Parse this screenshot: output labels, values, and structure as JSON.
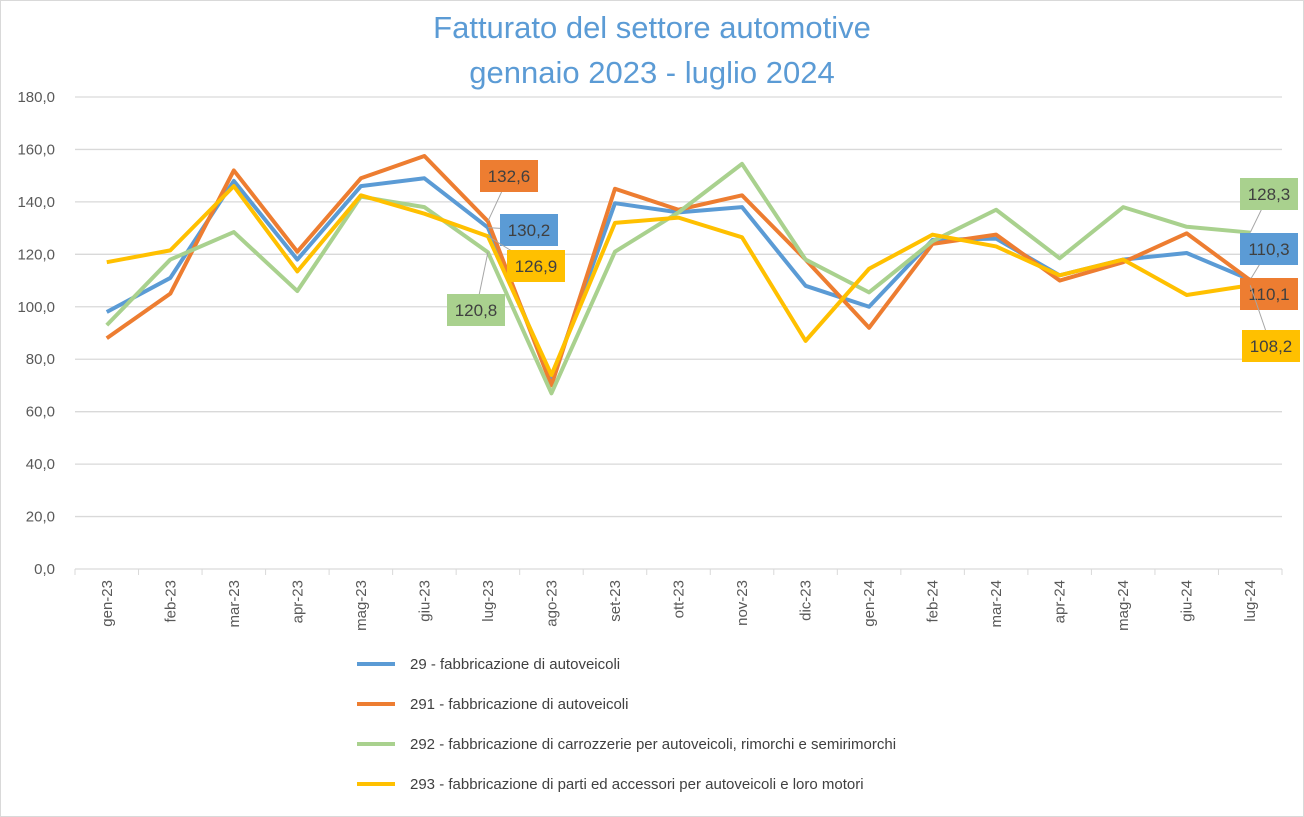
{
  "chart_data": {
    "type": "line",
    "title": [
      "Fatturato del settore automotive",
      "gennaio 2023 - luglio 2024"
    ],
    "xlabel": "",
    "ylabel": "",
    "ylim": [
      0,
      180
    ],
    "ytick_step": 20,
    "ytick_labels": [
      "0,0",
      "20,0",
      "40,0",
      "60,0",
      "80,0",
      "100,0",
      "120,0",
      "140,0",
      "160,0",
      "180,0"
    ],
    "grid": true,
    "legend_position": "bottom",
    "categories": [
      "gen-23",
      "feb-23",
      "mar-23",
      "apr-23",
      "mag-23",
      "giu-23",
      "lug-23",
      "ago-23",
      "set-23",
      "ott-23",
      "nov-23",
      "dic-23",
      "gen-24",
      "feb-24",
      "mar-24",
      "apr-24",
      "mag-24",
      "giu-24",
      "lug-24"
    ],
    "series": [
      {
        "name": "29 - fabbricazione di autoveicoli",
        "color": "#5b9bd5",
        "values": [
          98,
          111,
          148,
          118,
          146,
          149,
          130.2,
          72,
          139.5,
          136,
          138,
          108,
          100,
          125.5,
          126,
          112,
          118,
          120.5,
          110.3
        ],
        "data_labels": [
          {
            "index": 6,
            "text": "130,2"
          },
          {
            "index": 18,
            "text": "110,3"
          }
        ]
      },
      {
        "name": "291 - fabbricazione di autoveicoli",
        "color": "#ed7d31",
        "values": [
          88,
          105,
          152,
          121,
          149,
          157.5,
          132.6,
          70,
          145,
          137,
          142.5,
          118,
          92,
          124,
          127.5,
          110,
          117,
          128,
          110.1
        ],
        "data_labels": [
          {
            "index": 6,
            "text": "132,6"
          },
          {
            "index": 18,
            "text": "110,1"
          }
        ]
      },
      {
        "name": "292 - fabbricazione di carrozzerie per autoveicoli, rimorchi e semirimorchi",
        "color": "#a9d18e",
        "values": [
          93,
          118,
          128.5,
          106,
          142,
          138,
          120.8,
          67,
          121,
          136,
          154.5,
          118,
          105.5,
          125,
          137,
          118.5,
          138,
          130.5,
          128.3
        ],
        "data_labels": [
          {
            "index": 6,
            "text": "120,8"
          },
          {
            "index": 18,
            "text": "128,3"
          }
        ]
      },
      {
        "name": "293 - fabbricazione di parti ed accessori per autoveicoli e loro motori",
        "color": "#ffc000",
        "values": [
          117,
          121.5,
          146,
          113.5,
          142.5,
          135.5,
          126.9,
          74,
          132,
          134,
          126.5,
          87,
          114.5,
          127.5,
          123,
          112,
          118,
          104.5,
          108.2
        ],
        "data_labels": [
          {
            "index": 6,
            "text": "126,9"
          },
          {
            "index": 18,
            "text": "108,2"
          }
        ]
      }
    ]
  }
}
